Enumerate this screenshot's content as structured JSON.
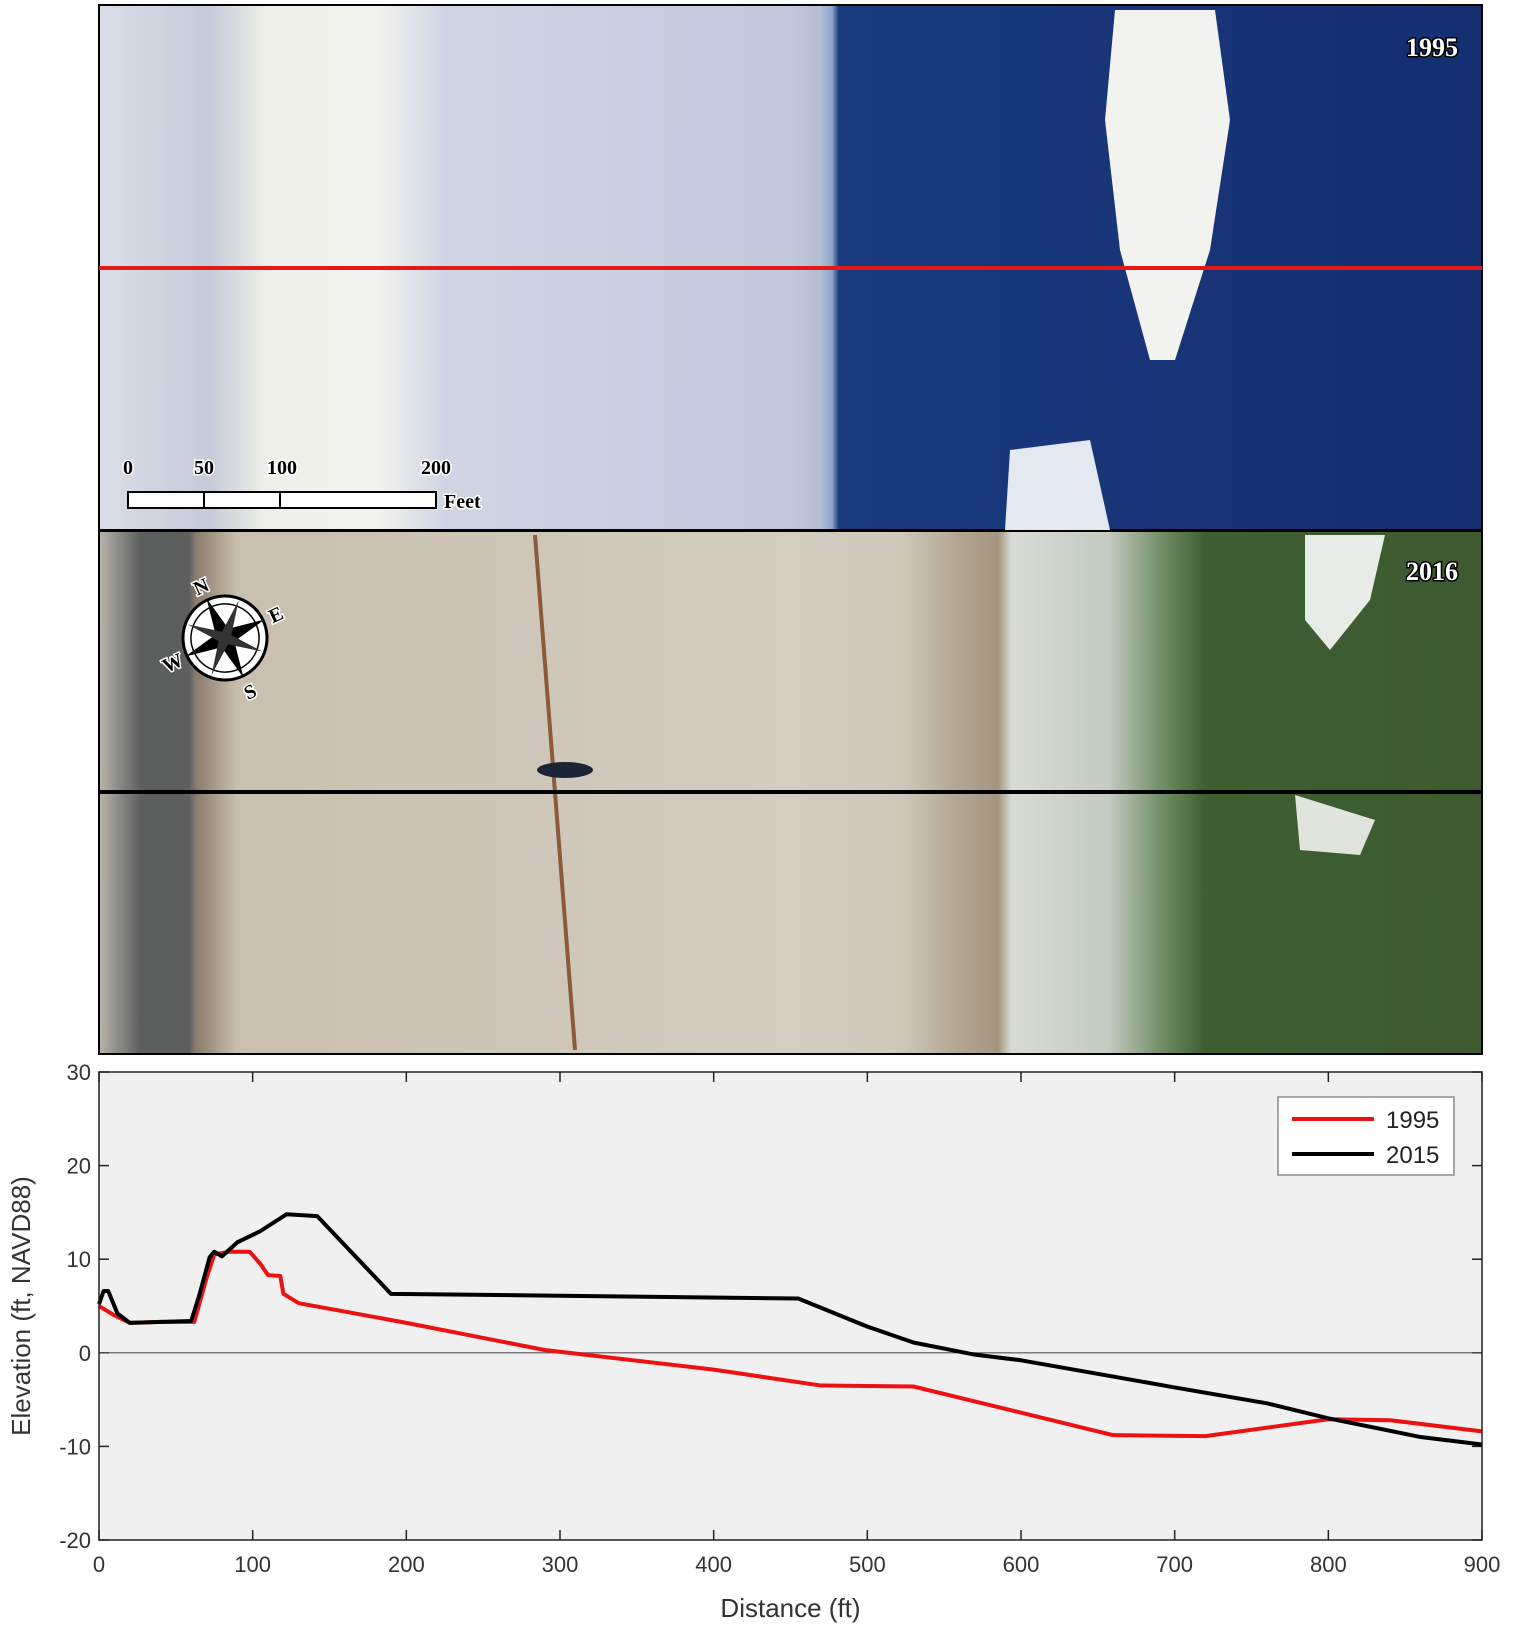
{
  "panels": [
    {
      "year_label": "1995"
    },
    {
      "year_label": "2016"
    }
  ],
  "scale_bar": {
    "ticks": [
      "0",
      "50",
      "100",
      "200"
    ],
    "unit": "Feet"
  },
  "compass": {
    "north": "N",
    "east": "E",
    "south": "S",
    "west": "W"
  },
  "chart_data": {
    "type": "line",
    "x_label": "Distance (ft)",
    "y_label": "Elevation (ft, NAVD88)",
    "xlim": [
      0,
      900
    ],
    "xticks": [
      0,
      100,
      200,
      300,
      400,
      500,
      600,
      700,
      800,
      900
    ],
    "ylim": [
      -20,
      30
    ],
    "yticks": [
      -20,
      -10,
      0,
      10,
      20,
      30
    ],
    "grid": false,
    "zero_line": true,
    "legend": "upper right",
    "series": [
      {
        "name": "1995",
        "color": "#ee1111",
        "x": [
          0,
          5,
          10,
          20,
          40,
          58,
          62,
          70,
          75,
          85,
          98,
          105,
          110,
          118,
          120,
          130,
          200,
          290,
          400,
          470,
          530,
          660,
          720,
          800,
          840,
          900
        ],
        "values": [
          5,
          4.5,
          4,
          3.2,
          3.3,
          3.3,
          3.3,
          8,
          10.5,
          10.8,
          10.8,
          9.5,
          8.3,
          8.2,
          6.3,
          5.3,
          3.2,
          0.3,
          -1.8,
          -3.5,
          -3.6,
          -8.8,
          -8.9,
          -7.1,
          -7.2,
          -8.4
        ]
      },
      {
        "name": "2015",
        "color": "#000000",
        "x": [
          0,
          3,
          6,
          12,
          20,
          60,
          65,
          72,
          75,
          80,
          90,
          105,
          122,
          142,
          190,
          300,
          455,
          500,
          530,
          570,
          600,
          700,
          760,
          800,
          860,
          900
        ],
        "values": [
          5.2,
          6.6,
          6.6,
          4.2,
          3.2,
          3.4,
          6,
          10.2,
          10.8,
          10.3,
          11.8,
          13,
          14.8,
          14.6,
          6.3,
          6.1,
          5.8,
          2.8,
          1.1,
          -0.2,
          -0.8,
          -3.7,
          -5.4,
          -7,
          -9,
          -9.8
        ]
      }
    ]
  }
}
